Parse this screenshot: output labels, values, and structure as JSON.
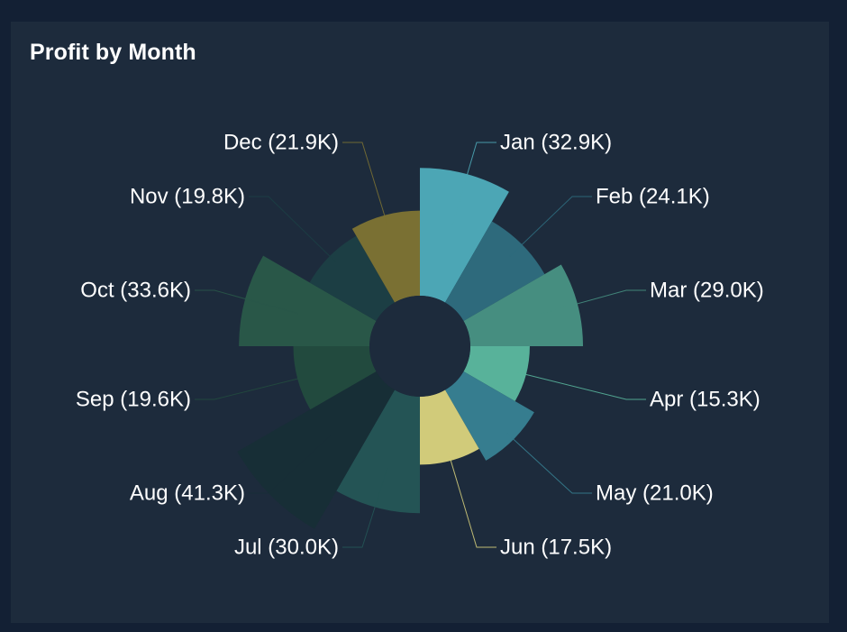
{
  "chart_data": {
    "type": "polar-area",
    "title": "Profit by Month",
    "categories": [
      "Jan",
      "Feb",
      "Mar",
      "Apr",
      "May",
      "Jun",
      "Jul",
      "Aug",
      "Sep",
      "Oct",
      "Nov",
      "Dec"
    ],
    "values": [
      32.9,
      24.1,
      29.0,
      15.3,
      21.0,
      17.5,
      30.0,
      41.3,
      19.6,
      33.6,
      19.8,
      21.9
    ],
    "labels": [
      "Jan (32.9K)",
      "Feb (24.1K)",
      "Mar (29.0K)",
      "Apr (15.3K)",
      "May (21.0K)",
      "Jun (17.5K)",
      "Jul (30.0K)",
      "Aug (41.3K)",
      "Sep (19.6K)",
      "Oct (33.6K)",
      "Nov (19.8K)",
      "Dec (21.9K)"
    ],
    "unit": "K",
    "colors": [
      "#4ca6b5",
      "#2e6a7c",
      "#468e80",
      "#58b29a",
      "#367d8f",
      "#d1cb7a",
      "#245455",
      "#172e36",
      "#224a3e",
      "#295748",
      "#1c3e44",
      "#7a7033"
    ]
  }
}
